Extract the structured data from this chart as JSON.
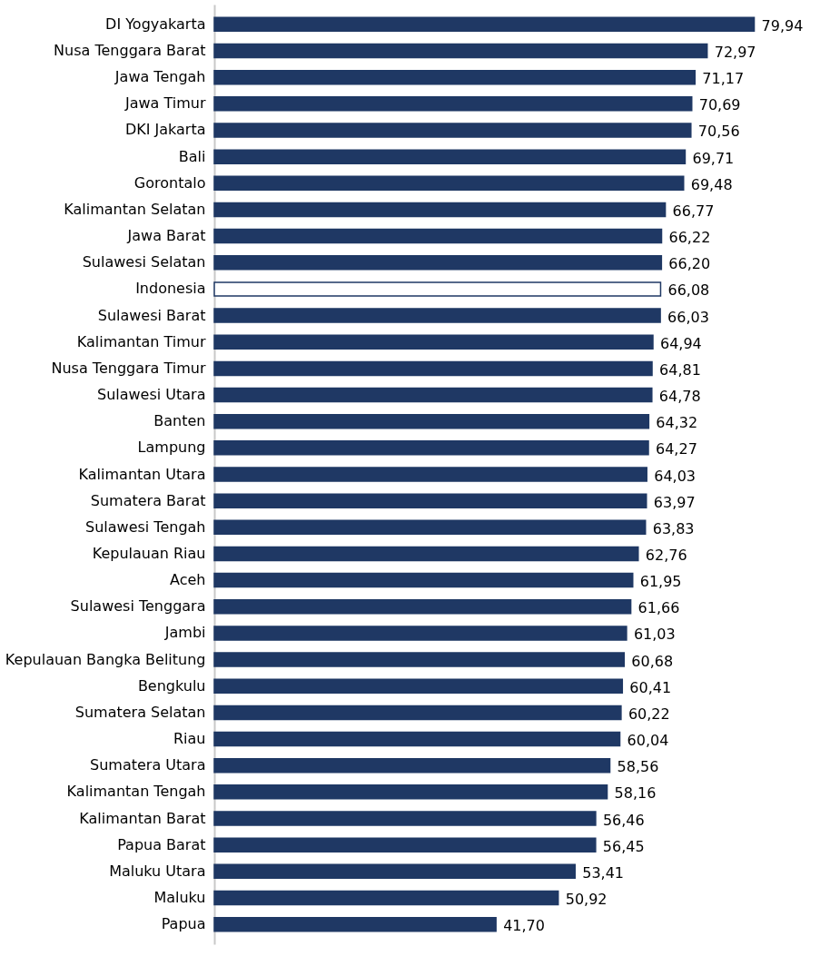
{
  "chart_data": {
    "type": "bar",
    "orientation": "horizontal",
    "categories": [
      "DI Yogyakarta",
      "Nusa Tenggara Barat",
      "Jawa Tengah",
      "Jawa Timur",
      "DKI Jakarta",
      "Bali",
      "Gorontalo",
      "Kalimantan Selatan",
      "Jawa Barat",
      "Sulawesi Selatan",
      "Indonesia",
      "Sulawesi Barat",
      "Kalimantan Timur",
      "Nusa Tenggara Timur",
      "Sulawesi Utara",
      "Banten",
      "Lampung",
      "Kalimantan Utara",
      "Sumatera Barat",
      "Sulawesi Tengah",
      "Kepulauan Riau",
      "Aceh",
      "Sulawesi Tenggara",
      "Jambi",
      "Kepulauan Bangka Belitung",
      "Bengkulu",
      "Sumatera Selatan",
      "Riau",
      "Sumatera Utara",
      "Kalimantan Tengah",
      "Kalimantan Barat",
      "Papua Barat",
      "Maluku Utara",
      "Maluku",
      "Papua"
    ],
    "series": [
      {
        "color": "#1f3864",
        "values": [
          79.94,
          72.97,
          71.17,
          70.69,
          70.56,
          69.71,
          69.48,
          66.77,
          66.22,
          66.2,
          66.08,
          66.03,
          64.94,
          64.81,
          64.78,
          64.32,
          64.27,
          64.03,
          63.97,
          63.83,
          62.76,
          61.95,
          61.66,
          61.03,
          60.68,
          60.41,
          60.22,
          60.04,
          58.56,
          58.16,
          56.46,
          56.45,
          53.41,
          50.92,
          41.7
        ],
        "colors": [
          "#1f3864",
          "#1f3864",
          "#1f3864",
          "#1f3864",
          "#1f3864",
          "#1f3864",
          "#1f3864",
          "#1f3864",
          "#1f3864",
          "#1f3864",
          "#ffffff",
          "#1f3864",
          "#1f3864",
          "#1f3864",
          "#1f3864",
          "#1f3864",
          "#1f3864",
          "#1f3864",
          "#1f3864",
          "#1f3864",
          "#1f3864",
          "#1f3864",
          "#1f3864",
          "#1f3864",
          "#1f3864",
          "#1f3864",
          "#1f3864",
          "#1f3864",
          "#1f3864",
          "#1f3864",
          "#1f3864",
          "#1f3864",
          "#1f3864",
          "#1f3864",
          "#1f3864"
        ],
        "value_labels": [
          "79,94",
          "72,97",
          "71,17",
          "70,69",
          "70,56",
          "69,71",
          "69,48",
          "66,77",
          "66,22",
          "66,20",
          "66,08",
          "66,03",
          "64,94",
          "64,81",
          "64,78",
          "64,32",
          "64,27",
          "64,03",
          "63,97",
          "63,83",
          "62,76",
          "61,95",
          "61,66",
          "61,03",
          "60,68",
          "60,41",
          "60,22",
          "60,04",
          "58,56",
          "58,16",
          "56,46",
          "56,45",
          "53,41",
          "50,92",
          "41,70"
        ]
      }
    ]
  }
}
